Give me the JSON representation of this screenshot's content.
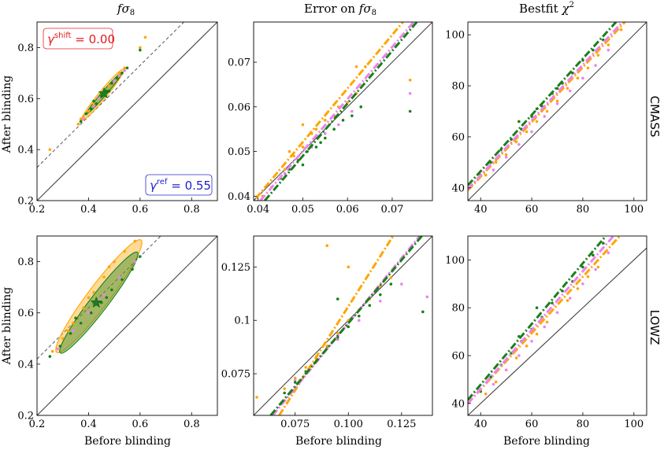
{
  "figure": {
    "columns": [
      {
        "title_pre": "f",
        "title_sym": "σ",
        "title_sub": "8"
      },
      {
        "title_pre": "Error on ",
        "title_sym": "fσ",
        "title_sub": "8"
      },
      {
        "title_pre": "Bestfit ",
        "title_sym": "χ",
        "title_sup": "2"
      }
    ],
    "rows": [
      "CMASS",
      "LOWZ"
    ],
    "xlabel": "Before blinding",
    "ylabel": "After blinding",
    "annotations": {
      "shift": {
        "sym": "γ",
        "sup": "shift",
        "value": " = 0.00",
        "color": "#e31a1c"
      },
      "ref": {
        "sym": "γ",
        "sup": "ref",
        "value": " = 0.55",
        "color": "#1f1fcc"
      }
    },
    "colors": {
      "orange": "#ffa500",
      "green": "#1a801a",
      "violet": "#ee82ee",
      "identity": "#000000",
      "dashed": "#555555"
    }
  },
  "chart_data": [
    {
      "id": "cmass-fs8",
      "type": "scatter",
      "row": "CMASS",
      "column": "fσ8",
      "xlim": [
        0.2,
        0.9
      ],
      "ylim": [
        0.2,
        0.9
      ],
      "xticks": [
        0.2,
        0.4,
        0.6,
        0.8
      ],
      "yticks": [
        0.2,
        0.4,
        0.6,
        0.8
      ],
      "xticklabels": [
        "0.2",
        "0.4",
        "0.6",
        "0.8"
      ],
      "yticklabels": [
        "0.2",
        "0.4",
        "0.6",
        "0.8"
      ],
      "identity": true,
      "dashed_line": [
        [
          0.2,
          0.33
        ],
        [
          0.77,
          0.9
        ]
      ],
      "ellipses": [
        {
          "color": "orange",
          "center": [
            0.455,
            0.615
          ],
          "sx": 0.054,
          "sy": 0.066,
          "rho": 0.97
        },
        {
          "color": "green",
          "center": [
            0.46,
            0.62
          ],
          "sx": 0.045,
          "sy": 0.053,
          "rho": 0.985
        }
      ],
      "star": {
        "color": "green",
        "x": 0.46,
        "y": 0.62
      },
      "series": [
        {
          "name": "orange",
          "x": [
            0.36,
            0.38,
            0.4,
            0.42,
            0.44,
            0.46,
            0.48,
            0.5,
            0.52,
            0.54,
            0.62,
            0.6,
            0.25,
            0.37
          ],
          "y": [
            0.5,
            0.53,
            0.55,
            0.58,
            0.6,
            0.62,
            0.65,
            0.67,
            0.7,
            0.72,
            0.84,
            0.8,
            0.4,
            0.52
          ]
        },
        {
          "name": "green",
          "x": [
            0.37,
            0.39,
            0.41,
            0.43,
            0.45,
            0.47,
            0.49,
            0.51,
            0.53,
            0.55,
            0.6,
            0.42,
            0.48
          ],
          "y": [
            0.51,
            0.54,
            0.56,
            0.58,
            0.61,
            0.63,
            0.66,
            0.68,
            0.7,
            0.72,
            0.79,
            0.59,
            0.63
          ]
        },
        {
          "name": "violet",
          "x": [
            0.38,
            0.42,
            0.46,
            0.5,
            0.54,
            0.44,
            0.52
          ],
          "y": [
            0.52,
            0.57,
            0.62,
            0.67,
            0.71,
            0.6,
            0.69
          ]
        }
      ]
    },
    {
      "id": "cmass-err",
      "type": "scatter",
      "row": "CMASS",
      "column": "Error on fσ8",
      "xlim": [
        0.039,
        0.079
      ],
      "ylim": [
        0.039,
        0.079
      ],
      "xticks": [
        0.04,
        0.05,
        0.06,
        0.07
      ],
      "yticks": [
        0.04,
        0.05,
        0.06,
        0.07
      ],
      "xticklabels": [
        "0.04",
        "0.05",
        "0.06",
        "0.07"
      ],
      "yticklabels": [
        "0.04",
        "0.05",
        "0.06",
        "0.07"
      ],
      "identity": true,
      "fits": [
        {
          "color": "orange",
          "p1": [
            0.0395,
            0.0395
          ],
          "p2": [
            0.0724,
            0.079
          ]
        },
        {
          "color": "violet",
          "p1": [
            0.0405,
            0.039
          ],
          "p2": [
            0.0748,
            0.079
          ]
        },
        {
          "color": "green",
          "p1": [
            0.0415,
            0.039
          ],
          "p2": [
            0.0755,
            0.079
          ]
        }
      ],
      "series": [
        {
          "name": "orange",
          "x": [
            0.041,
            0.043,
            0.045,
            0.046,
            0.048,
            0.05,
            0.052,
            0.053,
            0.055,
            0.057,
            0.058,
            0.06,
            0.062,
            0.064,
            0.05,
            0.047,
            0.074,
            0.062
          ],
          "y": [
            0.04,
            0.042,
            0.044,
            0.046,
            0.049,
            0.051,
            0.054,
            0.055,
            0.057,
            0.058,
            0.06,
            0.061,
            0.063,
            0.069,
            0.056,
            0.05,
            0.066,
            0.069
          ]
        },
        {
          "name": "green",
          "x": [
            0.045,
            0.047,
            0.049,
            0.051,
            0.053,
            0.055,
            0.057,
            0.059,
            0.061,
            0.063,
            0.05,
            0.054,
            0.074
          ],
          "y": [
            0.044,
            0.046,
            0.048,
            0.05,
            0.051,
            0.053,
            0.055,
            0.057,
            0.058,
            0.06,
            0.047,
            0.052,
            0.059
          ]
        },
        {
          "name": "violet",
          "x": [
            0.046,
            0.049,
            0.052,
            0.055,
            0.058,
            0.061,
            0.074
          ],
          "y": [
            0.045,
            0.048,
            0.051,
            0.054,
            0.056,
            0.059,
            0.063
          ]
        }
      ]
    },
    {
      "id": "cmass-chi2",
      "type": "scatter",
      "row": "CMASS",
      "column": "Bestfit χ2",
      "xlim": [
        35,
        105
      ],
      "ylim": [
        35,
        105
      ],
      "xticks": [
        40,
        60,
        80,
        100
      ],
      "yticks": [
        40,
        60,
        80,
        100
      ],
      "xticklabels": [
        "40",
        "60",
        "80",
        "100"
      ],
      "yticklabels": [
        "40",
        "60",
        "80",
        "100"
      ],
      "identity": true,
      "fits": [
        {
          "color": "orange",
          "p1": [
            35,
            39
          ],
          "p2": [
            96.5,
            105
          ]
        },
        {
          "color": "violet",
          "p1": [
            35,
            39.5
          ],
          "p2": [
            95.5,
            105
          ]
        },
        {
          "color": "green",
          "p1": [
            35,
            41
          ],
          "p2": [
            93,
            105
          ]
        }
      ],
      "series": [
        {
          "name": "orange",
          "x": [
            42,
            46,
            50,
            54,
            58,
            62,
            66,
            70,
            74,
            78,
            82,
            86,
            90,
            95
          ],
          "y": [
            45,
            50,
            53,
            58,
            62,
            66,
            70,
            74,
            79,
            83,
            87,
            92,
            96,
            102
          ]
        },
        {
          "name": "green",
          "x": [
            40,
            44,
            48,
            52,
            56,
            60,
            64,
            68,
            72,
            76,
            80,
            84,
            88,
            55,
            62,
            70
          ],
          "y": [
            45,
            50,
            55,
            59,
            63,
            68,
            72,
            77,
            81,
            85,
            90,
            94,
            98,
            66,
            71,
            79
          ]
        },
        {
          "name": "violet",
          "x": [
            45,
            50,
            55,
            60,
            65,
            70,
            75,
            80,
            85,
            90
          ],
          "y": [
            47,
            52,
            57,
            62,
            68,
            73,
            78,
            83,
            88,
            94
          ]
        }
      ]
    },
    {
      "id": "lowz-fs8",
      "type": "scatter",
      "row": "LOWZ",
      "column": "fσ8",
      "xlim": [
        0.2,
        0.9
      ],
      "ylim": [
        0.2,
        0.9
      ],
      "xticks": [
        0.2,
        0.4,
        0.6,
        0.8
      ],
      "yticks": [
        0.2,
        0.4,
        0.6,
        0.8
      ],
      "xticklabels": [
        "0.2",
        "0.4",
        "0.6",
        "0.8"
      ],
      "yticklabels": [
        "0.2",
        "0.4",
        "0.6",
        "0.8"
      ],
      "identity": true,
      "dashed_line": [
        [
          0.2,
          0.42
        ],
        [
          0.68,
          0.9
        ]
      ],
      "ellipses": [
        {
          "color": "orange",
          "center": [
            0.44,
            0.665
          ],
          "sx": 0.11,
          "sy": 0.145,
          "rho": 0.95
        },
        {
          "color": "green",
          "center": [
            0.44,
            0.64
          ],
          "sx": 0.1,
          "sy": 0.13,
          "rho": 0.96
        }
      ],
      "star": {
        "color": "green",
        "x": 0.43,
        "y": 0.64
      },
      "series": [
        {
          "name": "orange",
          "x": [
            0.26,
            0.3,
            0.34,
            0.38,
            0.42,
            0.46,
            0.5,
            0.54,
            0.58,
            0.48,
            0.4,
            0.32
          ],
          "y": [
            0.45,
            0.5,
            0.56,
            0.62,
            0.68,
            0.74,
            0.8,
            0.84,
            0.88,
            0.78,
            0.66,
            0.53
          ]
        },
        {
          "name": "green",
          "x": [
            0.25,
            0.29,
            0.33,
            0.37,
            0.41,
            0.45,
            0.49,
            0.53,
            0.57,
            0.6,
            0.35,
            0.47
          ],
          "y": [
            0.43,
            0.47,
            0.52,
            0.56,
            0.6,
            0.64,
            0.69,
            0.73,
            0.77,
            0.82,
            0.58,
            0.66
          ]
        },
        {
          "name": "violet",
          "x": [
            0.28,
            0.34,
            0.4,
            0.46,
            0.52,
            0.58,
            0.44
          ],
          "y": [
            0.46,
            0.53,
            0.6,
            0.67,
            0.74,
            0.8,
            0.65
          ]
        }
      ]
    },
    {
      "id": "lowz-err",
      "type": "scatter",
      "row": "LOWZ",
      "column": "Error on fσ8",
      "xlim": [
        0.0555,
        0.1395
      ],
      "ylim": [
        0.0555,
        0.1395
      ],
      "xticks": [
        0.075,
        0.1,
        0.125
      ],
      "yticks": [
        0.075,
        0.1,
        0.125
      ],
      "xticklabels": [
        "0.075",
        "0.100",
        "0.125"
      ],
      "yticklabels": [
        "0.075",
        "0.1",
        "0.125"
      ],
      "identity": true,
      "fits": [
        {
          "color": "orange",
          "p1": [
            0.0675,
            0.0555
          ],
          "p2": [
            0.121,
            0.1395
          ]
        },
        {
          "color": "violet",
          "p1": [
            0.0645,
            0.0555
          ],
          "p2": [
            0.1335,
            0.1395
          ]
        },
        {
          "color": "green",
          "p1": [
            0.0635,
            0.0555
          ],
          "p2": [
            0.1345,
            0.1395
          ]
        }
      ],
      "series": [
        {
          "name": "orange",
          "x": [
            0.07,
            0.075,
            0.08,
            0.085,
            0.09,
            0.095,
            0.1,
            0.105,
            0.11,
            0.115,
            0.12,
            0.09,
            0.1,
            0.057
          ],
          "y": [
            0.068,
            0.073,
            0.078,
            0.083,
            0.088,
            0.094,
            0.1,
            0.105,
            0.11,
            0.116,
            0.12,
            0.135,
            0.125,
            0.064
          ]
        },
        {
          "name": "green",
          "x": [
            0.07,
            0.075,
            0.08,
            0.085,
            0.09,
            0.095,
            0.1,
            0.105,
            0.11,
            0.115,
            0.12,
            0.135,
            0.095
          ],
          "y": [
            0.066,
            0.071,
            0.076,
            0.081,
            0.087,
            0.092,
            0.097,
            0.102,
            0.107,
            0.112,
            0.117,
            0.104,
            0.11
          ]
        },
        {
          "name": "violet",
          "x": [
            0.075,
            0.085,
            0.095,
            0.105,
            0.115,
            0.125,
            0.137
          ],
          "y": [
            0.072,
            0.082,
            0.091,
            0.1,
            0.109,
            0.117,
            0.111
          ]
        }
      ]
    },
    {
      "id": "lowz-chi2",
      "type": "scatter",
      "row": "LOWZ",
      "column": "Bestfit χ2",
      "xlim": [
        35,
        105
      ],
      "ylim": [
        35,
        110
      ],
      "xticks": [
        40,
        60,
        80,
        100
      ],
      "yticks": [
        40,
        60,
        80,
        100
      ],
      "xticklabels": [
        "40",
        "60",
        "80",
        "100"
      ],
      "yticklabels": [
        "40",
        "60",
        "80",
        "100"
      ],
      "identity": true,
      "fits": [
        {
          "color": "orange",
          "p1": [
            35,
            40
          ],
          "p2": [
            94.5,
            110
          ]
        },
        {
          "color": "violet",
          "p1": [
            35,
            40
          ],
          "p2": [
            92,
            110
          ]
        },
        {
          "color": "green",
          "p1": [
            35,
            41.5
          ],
          "p2": [
            89,
            110
          ]
        }
      ],
      "series": [
        {
          "name": "orange",
          "x": [
            42,
            46,
            50,
            54,
            58,
            62,
            66,
            70,
            74,
            78,
            82,
            86,
            90
          ],
          "y": [
            44,
            49,
            54,
            59,
            64,
            69,
            74,
            78,
            83,
            88,
            93,
            97,
            103
          ]
        },
        {
          "name": "green",
          "x": [
            40,
            44,
            48,
            52,
            56,
            60,
            64,
            68,
            72,
            76,
            80,
            84,
            88,
            62,
            55
          ],
          "y": [
            45,
            51,
            56,
            61,
            66,
            71,
            76,
            82,
            87,
            91,
            97,
            102,
            107,
            80,
            68
          ]
        },
        {
          "name": "violet",
          "x": [
            45,
            50,
            55,
            60,
            65,
            70,
            75,
            80,
            85,
            90
          ],
          "y": [
            48,
            54,
            60,
            66,
            72,
            78,
            84,
            90,
            96,
            103
          ]
        }
      ]
    }
  ]
}
